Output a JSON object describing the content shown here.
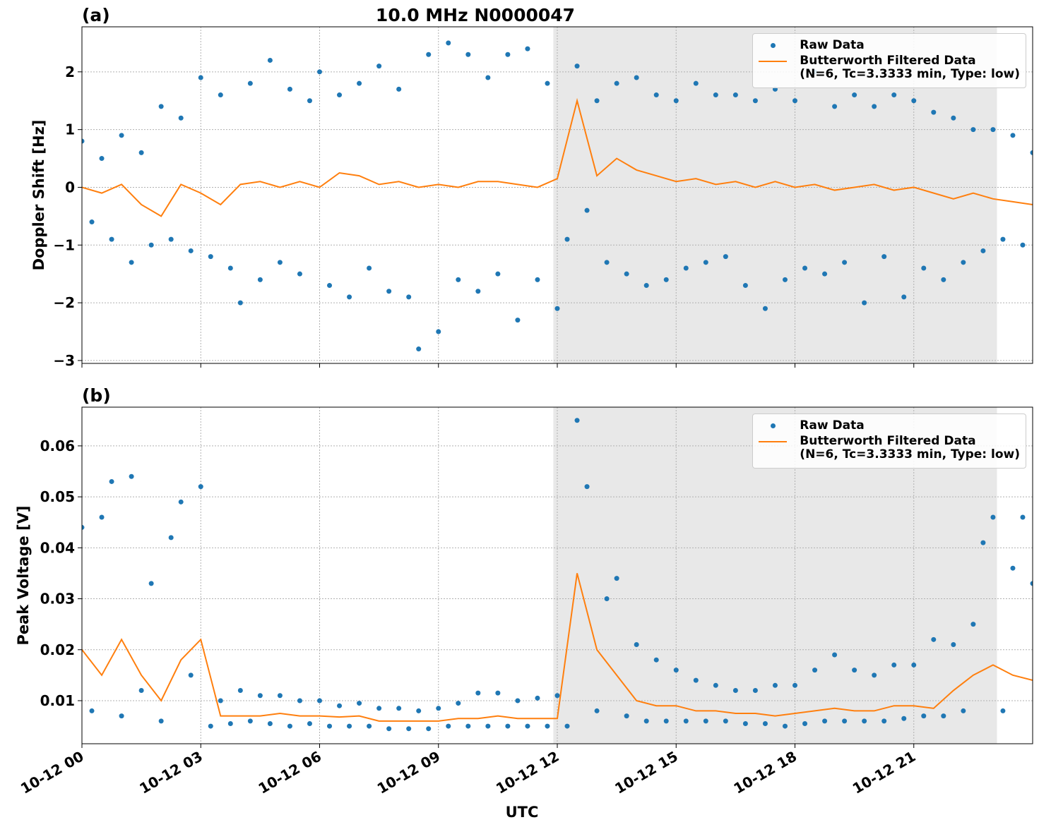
{
  "chart_data": [
    {
      "type": "combo",
      "title": "10.0 MHz N0000047",
      "panel_label": "(a)",
      "ylabel": "Doppler Shift [Hz]",
      "xlim": [
        0,
        24
      ],
      "xticks": [
        0,
        3,
        6,
        9,
        12,
        15,
        18,
        21
      ],
      "xtick_labels": false,
      "ylim": [
        -3.05,
        2.78
      ],
      "yticks": [
        {
          "value": -3,
          "label": "−3"
        },
        {
          "value": -2,
          "label": "−2"
        },
        {
          "value": -1,
          "label": "−1"
        },
        0,
        1,
        2
      ],
      "grid": true,
      "legend": "upper right",
      "shaded_span": [
        11.9,
        23.1
      ],
      "shade_color": "#e8e8e8",
      "series": [
        {
          "name": "Raw Data",
          "type": "scatter",
          "color": "#1f77b4",
          "x": [
            0,
            0.25,
            0.5,
            0.75,
            1,
            1.25,
            1.5,
            1.75,
            2,
            2.25,
            2.5,
            2.75,
            3,
            3.25,
            3.5,
            3.75,
            4,
            4.25,
            4.5,
            4.75,
            5,
            5.25,
            5.5,
            5.75,
            6,
            6.25,
            6.5,
            6.75,
            7,
            7.25,
            7.5,
            7.75,
            8,
            8.25,
            8.5,
            8.75,
            9,
            9.25,
            9.5,
            9.75,
            10,
            10.25,
            10.5,
            10.75,
            11,
            11.25,
            11.5,
            11.75,
            12,
            12.25,
            12.5,
            12.75,
            13,
            13.25,
            13.5,
            13.75,
            14,
            14.25,
            14.5,
            14.75,
            15,
            15.25,
            15.5,
            15.75,
            16,
            16.25,
            16.5,
            16.75,
            17,
            17.25,
            17.5,
            17.75,
            18,
            18.25,
            18.5,
            18.75,
            19,
            19.25,
            19.5,
            19.75,
            20,
            20.25,
            20.5,
            20.75,
            21,
            21.25,
            21.5,
            21.75,
            22,
            22.25,
            22.5,
            22.75,
            23,
            23.25,
            23.5,
            23.75,
            24
          ],
          "values": [
            0.8,
            -0.6,
            0.5,
            -0.9,
            0.9,
            -1.3,
            0.6,
            -1.0,
            1.4,
            -0.9,
            1.2,
            -1.1,
            1.9,
            -1.2,
            1.6,
            -1.4,
            -2.0,
            1.8,
            -1.6,
            2.2,
            -1.3,
            1.7,
            -1.5,
            1.5,
            2.0,
            -1.7,
            1.6,
            -1.9,
            1.8,
            -1.4,
            2.1,
            -1.8,
            1.7,
            -1.9,
            -2.8,
            2.3,
            -2.5,
            2.5,
            -1.6,
            2.3,
            -1.8,
            1.9,
            -1.5,
            2.3,
            -2.3,
            2.4,
            -1.6,
            1.8,
            -2.1,
            -0.9,
            2.1,
            -0.4,
            1.5,
            -1.3,
            1.8,
            -1.5,
            1.9,
            -1.7,
            1.6,
            -1.6,
            1.5,
            -1.4,
            1.8,
            -1.3,
            1.6,
            -1.2,
            1.6,
            -1.7,
            1.5,
            -2.1,
            1.7,
            -1.6,
            1.5,
            -1.4,
            2.0,
            -1.5,
            1.4,
            -1.3,
            1.6,
            -2.0,
            1.4,
            -1.2,
            1.6,
            -1.9,
            1.5,
            -1.4,
            1.3,
            -1.6,
            1.2,
            -1.3,
            1.0,
            -1.1,
            1.0,
            -0.9,
            0.9,
            -1.0,
            0.6
          ]
        },
        {
          "name": "Butterworth Filtered Data\n(N=6, Tc=3.3333 min, Type: low)",
          "type": "line",
          "color": "#ff7f0e",
          "x": [
            0,
            0.5,
            1,
            1.5,
            2,
            2.5,
            3,
            3.5,
            4,
            4.5,
            5,
            5.5,
            6,
            6.5,
            7,
            7.5,
            8,
            8.5,
            9,
            9.5,
            10,
            10.5,
            11,
            11.5,
            12,
            12.5,
            13,
            13.5,
            14,
            14.5,
            15,
            15.5,
            16,
            16.5,
            17,
            17.5,
            18,
            18.5,
            19,
            19.5,
            20,
            20.5,
            21,
            21.5,
            22,
            22.5,
            23,
            23.5,
            24
          ],
          "values": [
            0,
            -0.1,
            0.05,
            -0.3,
            -0.5,
            0.05,
            -0.1,
            -0.3,
            0.05,
            0.1,
            0,
            0.1,
            0,
            0.25,
            0.2,
            0.05,
            0.1,
            0,
            0.05,
            0,
            0.1,
            0.1,
            0.05,
            0,
            0.15,
            1.5,
            0.2,
            0.5,
            0.3,
            0.2,
            0.1,
            0.15,
            0.05,
            0.1,
            0,
            0.1,
            0,
            0.05,
            -0.05,
            0,
            0.05,
            -0.05,
            0,
            -0.1,
            -0.2,
            -0.1,
            -0.2,
            -0.25,
            -0.3
          ]
        }
      ]
    },
    {
      "type": "combo",
      "panel_label": "(b)",
      "ylabel": "Peak Voltage [V]",
      "xlabel": "UTC",
      "xlim": [
        0,
        24
      ],
      "xticks": [
        {
          "value": 0,
          "label": "10-12 00"
        },
        {
          "value": 3,
          "label": "10-12 03"
        },
        {
          "value": 6,
          "label": "10-12 06"
        },
        {
          "value": 9,
          "label": "10-12 09"
        },
        {
          "value": 12,
          "label": "10-12 12"
        },
        {
          "value": 15,
          "label": "10-12 15"
        },
        {
          "value": 18,
          "label": "10-12 18"
        },
        {
          "value": 21,
          "label": "10-12 21"
        }
      ],
      "xtick_labels": true,
      "ylim": [
        0.00155,
        0.0676
      ],
      "yticks": [
        0.01,
        0.02,
        0.03,
        0.04,
        0.05,
        0.06
      ],
      "grid": true,
      "legend": "upper right",
      "shaded_span": [
        11.9,
        23.1
      ],
      "shade_color": "#e8e8e8",
      "series": [
        {
          "name": "Raw Data",
          "type": "scatter",
          "color": "#1f77b4",
          "x": [
            0,
            0.25,
            0.5,
            0.75,
            1,
            1.25,
            1.5,
            1.75,
            2,
            2.25,
            2.5,
            2.75,
            3,
            3.25,
            3.5,
            3.75,
            4,
            4.25,
            4.5,
            4.75,
            5,
            5.25,
            5.5,
            5.75,
            6,
            6.25,
            6.5,
            6.75,
            7,
            7.25,
            7.5,
            7.75,
            8,
            8.25,
            8.5,
            8.75,
            9,
            9.25,
            9.5,
            9.75,
            10,
            10.25,
            10.5,
            10.75,
            11,
            11.25,
            11.5,
            11.75,
            12,
            12.25,
            12.5,
            12.75,
            13,
            13.25,
            13.5,
            13.75,
            14,
            14.25,
            14.5,
            14.75,
            15,
            15.25,
            15.5,
            15.75,
            16,
            16.25,
            16.5,
            16.75,
            17,
            17.25,
            17.5,
            17.75,
            18,
            18.25,
            18.5,
            18.75,
            19,
            19.25,
            19.5,
            19.75,
            20,
            20.25,
            20.5,
            20.75,
            21,
            21.25,
            21.5,
            21.75,
            22,
            22.25,
            22.5,
            22.75,
            23,
            23.25,
            23.5,
            23.75,
            24
          ],
          "values": [
            0.044,
            0.008,
            0.046,
            0.053,
            0.007,
            0.054,
            0.012,
            0.033,
            0.006,
            0.042,
            0.049,
            0.015,
            0.052,
            0.005,
            0.01,
            0.0055,
            0.012,
            0.006,
            0.011,
            0.0055,
            0.011,
            0.005,
            0.01,
            0.0055,
            0.01,
            0.005,
            0.009,
            0.005,
            0.0095,
            0.005,
            0.0085,
            0.0045,
            0.0085,
            0.0045,
            0.008,
            0.0045,
            0.0085,
            0.005,
            0.0095,
            0.005,
            0.0115,
            0.005,
            0.0115,
            0.005,
            0.01,
            0.005,
            0.0105,
            0.005,
            0.011,
            0.005,
            0.065,
            0.052,
            0.008,
            0.03,
            0.034,
            0.007,
            0.021,
            0.006,
            0.018,
            0.006,
            0.016,
            0.006,
            0.014,
            0.006,
            0.013,
            0.006,
            0.012,
            0.0055,
            0.012,
            0.0055,
            0.013,
            0.005,
            0.013,
            0.0055,
            0.016,
            0.006,
            0.019,
            0.006,
            0.016,
            0.006,
            0.015,
            0.006,
            0.017,
            0.0065,
            0.017,
            0.007,
            0.022,
            0.007,
            0.021,
            0.008,
            0.025,
            0.041,
            0.046,
            0.008,
            0.036,
            0.046,
            0.033
          ]
        },
        {
          "name": "Butterworth Filtered Data\n(N=6, Tc=3.3333 min, Type: low)",
          "type": "line",
          "color": "#ff7f0e",
          "x": [
            0,
            0.5,
            1,
            1.5,
            2,
            2.5,
            3,
            3.5,
            4,
            4.5,
            5,
            5.5,
            6,
            6.5,
            7,
            7.5,
            8,
            8.5,
            9,
            9.5,
            10,
            10.5,
            11,
            11.5,
            12,
            12.5,
            13,
            13.5,
            14,
            14.5,
            15,
            15.5,
            16,
            16.5,
            17,
            17.5,
            18,
            18.5,
            19,
            19.5,
            20,
            20.5,
            21,
            21.5,
            22,
            22.5,
            23,
            23.5,
            24
          ],
          "values": [
            0.02,
            0.015,
            0.022,
            0.015,
            0.01,
            0.018,
            0.022,
            0.007,
            0.007,
            0.007,
            0.0075,
            0.007,
            0.007,
            0.0068,
            0.007,
            0.006,
            0.006,
            0.006,
            0.006,
            0.0065,
            0.0065,
            0.007,
            0.0065,
            0.0065,
            0.0065,
            0.035,
            0.02,
            0.015,
            0.01,
            0.009,
            0.009,
            0.008,
            0.008,
            0.0075,
            0.0075,
            0.007,
            0.0075,
            0.008,
            0.0085,
            0.008,
            0.008,
            0.009,
            0.009,
            0.0085,
            0.012,
            0.015,
            0.017,
            0.015,
            0.014
          ]
        }
      ]
    }
  ]
}
